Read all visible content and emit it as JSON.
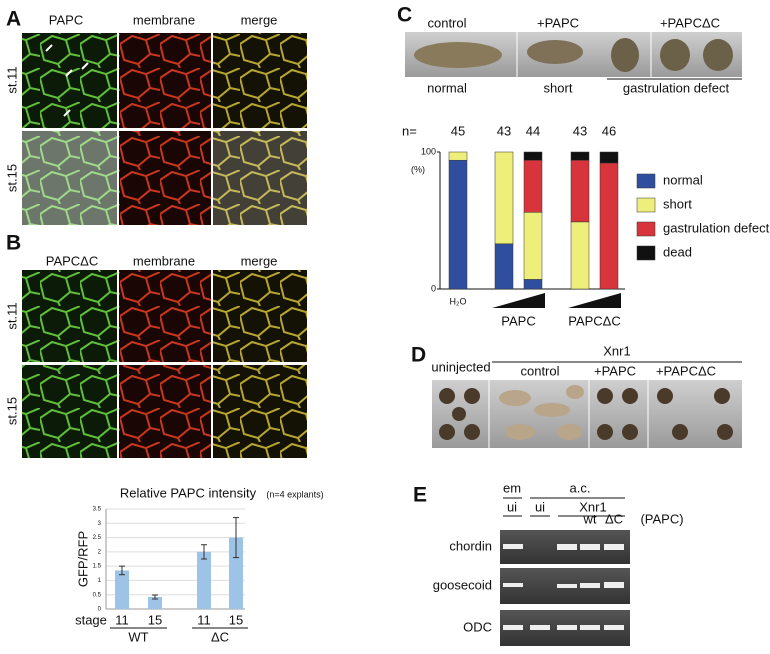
{
  "panel_a": {
    "letter": "A",
    "columns": [
      "PAPC",
      "membrane",
      "merge"
    ],
    "rows": [
      "st.11",
      "st.15"
    ]
  },
  "panel_b": {
    "letter": "B",
    "columns": [
      "PAPCΔC",
      "membrane",
      "merge"
    ],
    "rows": [
      "st.11",
      "st.15"
    ]
  },
  "panel_c": {
    "letter": "C",
    "top_labels": [
      "control",
      "+PAPC",
      "+PAPCΔC"
    ],
    "bottom_labels": [
      "normal",
      "short",
      "gastrulation defect"
    ]
  },
  "panel_d": {
    "letter": "D",
    "uninjected": "uninjected",
    "group": "Xnr1",
    "labels": [
      "control",
      "+PAPC",
      "+PAPCΔC"
    ]
  },
  "panel_e": {
    "letter": "E",
    "em": "em",
    "ac": "a.c.",
    "lanes": [
      "ui",
      "ui",
      "Xnr1"
    ],
    "constructs": [
      "wt",
      "ΔC"
    ],
    "construct_label": "(PAPC)",
    "genes": [
      "chordin",
      "goosecoid",
      "ODC"
    ]
  },
  "chart_data": [
    {
      "type": "bar",
      "title": "Relative PAPC intensity",
      "subtitle": "(n=4 explants)",
      "y_label": "GFP/RFP",
      "x_label": "stage",
      "categories": [
        "11",
        "15",
        "11",
        "15"
      ],
      "groups": [
        "WT",
        "ΔC"
      ],
      "values": [
        1.35,
        0.42,
        2.0,
        2.5
      ],
      "errors": [
        0.15,
        0.07,
        0.25,
        0.7
      ],
      "color": "#9dc3e6",
      "ylim": [
        0,
        3.5
      ],
      "yticks": [
        0,
        0.5,
        1,
        1.5,
        2,
        2.5,
        3,
        3.5
      ],
      "grid": true
    },
    {
      "type": "stacked_bar",
      "y_label": "(%)",
      "n_label": "n=",
      "n": [
        45,
        43,
        44,
        43,
        46
      ],
      "categories": [
        "H₂O",
        null,
        null,
        null,
        null
      ],
      "groups": [
        "PAPC",
        "PAPCΔC"
      ],
      "ylim": [
        0,
        100
      ],
      "yticks": [
        0,
        100
      ],
      "legend": "right",
      "series": [
        {
          "name": "normal",
          "color": "#2f4f9e",
          "values": [
            94,
            33,
            7,
            0,
            0
          ]
        },
        {
          "name": "short",
          "color": "#eeee7a",
          "values": [
            6,
            67,
            49,
            49,
            0
          ]
        },
        {
          "name": "gastrulation defect",
          "color": "#d7353b",
          "values": [
            0,
            0,
            38,
            45,
            92
          ]
        },
        {
          "name": "dead",
          "color": "#111111",
          "values": [
            0,
            0,
            6,
            6,
            8
          ]
        }
      ]
    }
  ]
}
